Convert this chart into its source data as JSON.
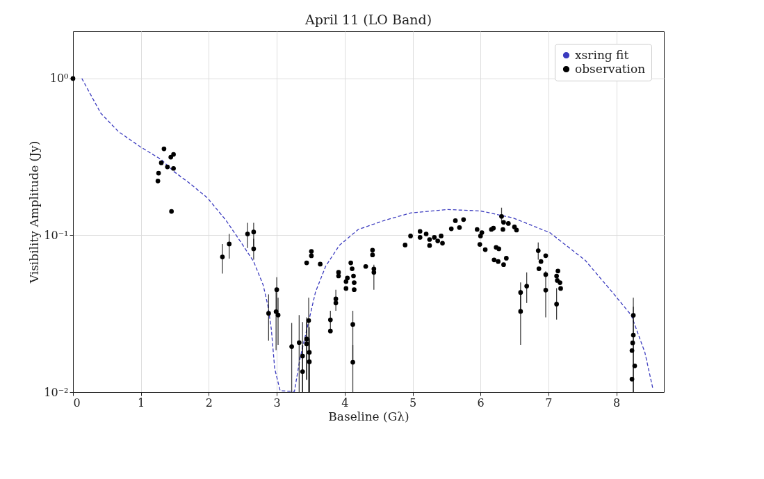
{
  "chart_data": {
    "type": "scatter",
    "title": "April 11 (LO Band)",
    "xlabel": "Baseline (Gλ)",
    "ylabel": "Visibility Amplitude (Jy)",
    "log": "y",
    "grid": true,
    "legend": "top right",
    "xlim": [
      0,
      8.7
    ],
    "xticks": [
      0,
      1,
      2,
      3,
      4,
      5,
      6,
      7,
      8
    ],
    "ylim": [
      0.01,
      2
    ],
    "yticks": [
      {
        "value": 0.01,
        "label": "10⁻²"
      },
      {
        "value": 0.1,
        "label": "10⁻¹"
      },
      {
        "value": 1,
        "label": "10⁰"
      }
    ],
    "series": [
      {
        "name": "xsring fit",
        "type": "line",
        "color": "#3b3bbf",
        "line_style": "dashed",
        "marker": "none",
        "x": [
          0.13,
          0.41,
          0.67,
          0.99,
          1.3,
          1.48,
          1.71,
          1.98,
          2.25,
          2.46,
          2.66,
          2.8,
          2.87,
          2.92,
          2.97,
          3.05,
          3.26,
          3.34,
          3.45,
          3.57,
          3.72,
          3.92,
          4.2,
          4.6,
          4.98,
          5.52,
          6.0,
          6.48,
          7.02,
          7.54,
          7.94,
          8.22,
          8.42,
          8.54
        ],
        "values": [
          1.0,
          0.6,
          0.458,
          0.367,
          0.304,
          0.256,
          0.216,
          0.173,
          0.125,
          0.092,
          0.068,
          0.0482,
          0.0355,
          0.0252,
          0.0141,
          0.0102,
          0.0101,
          0.0162,
          0.0259,
          0.0434,
          0.0634,
          0.0861,
          0.109,
          0.125,
          0.139,
          0.146,
          0.143,
          0.129,
          0.104,
          0.0694,
          0.0434,
          0.0309,
          0.0179,
          0.0104
        ]
      },
      {
        "name": "observation",
        "type": "scatter",
        "color": "#000000",
        "marker": "circle",
        "x": [
          0,
          1.34,
          1.48,
          1.44,
          1.3,
          1.39,
          1.48,
          1.26,
          1.25,
          1.45,
          2.2,
          2.3,
          2.57,
          2.66,
          2.66,
          2.88,
          3.0,
          2.99,
          3.02,
          3.22,
          3.33,
          3.38,
          3.38,
          3.44,
          3.44,
          3.47,
          3.48,
          3.48,
          3.51,
          3.51,
          3.44,
          3.64,
          3.79,
          3.79,
          3.87,
          3.87,
          3.91,
          3.91,
          4.02,
          4.02,
          4.04,
          4.09,
          4.11,
          4.13,
          4.14,
          4.14,
          4.12,
          4.12,
          4.31,
          4.41,
          4.41,
          4.43,
          4.43,
          4.89,
          4.97,
          5.11,
          5.11,
          5.2,
          5.25,
          5.25,
          5.32,
          5.37,
          5.42,
          5.44,
          5.57,
          5.63,
          5.69,
          5.75,
          5.95,
          6.02,
          6.0,
          5.99,
          6.07,
          6.16,
          6.19,
          6.31,
          6.34,
          6.33,
          6.41,
          6.5,
          6.53,
          6.23,
          6.27,
          6.2,
          6.26,
          6.34,
          6.38,
          6.59,
          6.59,
          6.68,
          6.85,
          6.86,
          6.89,
          6.96,
          6.96,
          6.96,
          7.12,
          7.13,
          7.17,
          7.18,
          7.12,
          7.14,
          8.25,
          8.25,
          8.24,
          8.23,
          8.27,
          8.23
        ],
        "values": [
          1.0,
          0.356,
          0.328,
          0.315,
          0.29,
          0.273,
          0.267,
          0.249,
          0.222,
          0.142,
          0.0728,
          0.088,
          0.102,
          0.105,
          0.082,
          0.0318,
          0.045,
          0.0326,
          0.031,
          0.0195,
          0.0207,
          0.017,
          0.0135,
          0.0218,
          0.0203,
          0.0286,
          0.0179,
          0.0156,
          0.079,
          0.074,
          0.0667,
          0.0655,
          0.0289,
          0.0245,
          0.0393,
          0.037,
          0.0581,
          0.055,
          0.0507,
          0.0458,
          0.0534,
          0.0667,
          0.0612,
          0.055,
          0.0499,
          0.045,
          0.027,
          0.0155,
          0.0633,
          0.0804,
          0.075,
          0.061,
          0.058,
          0.0867,
          0.099,
          0.106,
          0.097,
          0.102,
          0.094,
          0.086,
          0.097,
          0.092,
          0.099,
          0.089,
          0.11,
          0.124,
          0.112,
          0.126,
          0.109,
          0.104,
          0.099,
          0.0875,
          0.081,
          0.109,
          0.111,
          0.132,
          0.121,
          0.109,
          0.119,
          0.113,
          0.108,
          0.0838,
          0.082,
          0.0697,
          0.068,
          0.065,
          0.0714,
          0.0432,
          0.0327,
          0.0474,
          0.0798,
          0.0612,
          0.068,
          0.0741,
          0.0562,
          0.0447,
          0.055,
          0.0515,
          0.0499,
          0.0458,
          0.0364,
          0.0592,
          0.0309,
          0.0231,
          0.0206,
          0.0184,
          0.0147,
          0.0121
        ],
        "errors": [
          null,
          null,
          null,
          null,
          null,
          null,
          null,
          null,
          null,
          null,
          [
            0.057,
            0.088
          ],
          [
            0.071,
            0.102
          ],
          [
            0.083,
            0.12
          ],
          [
            0.085,
            0.12
          ],
          [
            0.07,
            0.095
          ],
          [
            0.0213,
            0.042
          ],
          [
            0.032,
            0.054
          ],
          [
            0.0185,
            0.045
          ],
          [
            0.02,
            0.04
          ],
          [
            0.01,
            0.0276
          ],
          [
            0.01,
            0.031
          ],
          [
            0.01,
            0.028
          ],
          [
            0.01,
            0.02
          ],
          [
            0.012,
            0.03
          ],
          [
            0.012,
            0.028
          ],
          [
            0.01,
            0.04
          ],
          [
            0.01,
            0.026
          ],
          [
            0.01,
            0.022
          ],
          null,
          null,
          null,
          null,
          [
            0.025,
            0.033
          ],
          null,
          [
            0.033,
            0.045
          ],
          null,
          null,
          null,
          null,
          null,
          null,
          null,
          null,
          null,
          null,
          null,
          [
            0.0155,
            0.033
          ],
          [
            0.01,
            0.02
          ],
          null,
          null,
          null,
          null,
          [
            0.045,
            0.065
          ],
          null,
          null,
          null,
          null,
          null,
          null,
          null,
          null,
          null,
          null,
          null,
          null,
          null,
          null,
          null,
          null,
          null,
          null,
          null,
          null,
          null,
          null,
          [
            0.12,
            0.15
          ],
          null,
          null,
          null,
          null,
          null,
          null,
          null,
          null,
          null,
          null,
          null,
          [
            0.033,
            0.05
          ],
          [
            0.02,
            0.045
          ],
          [
            0.037,
            0.058
          ],
          [
            0.07,
            0.09
          ],
          null,
          null,
          null,
          null,
          [
            0.03,
            0.059
          ],
          null,
          null,
          null,
          null,
          [
            0.029,
            0.046
          ],
          null,
          [
            0.01,
            0.04
          ],
          [
            0.01,
            0.035
          ],
          null,
          null,
          null,
          null
        ]
      }
    ]
  }
}
